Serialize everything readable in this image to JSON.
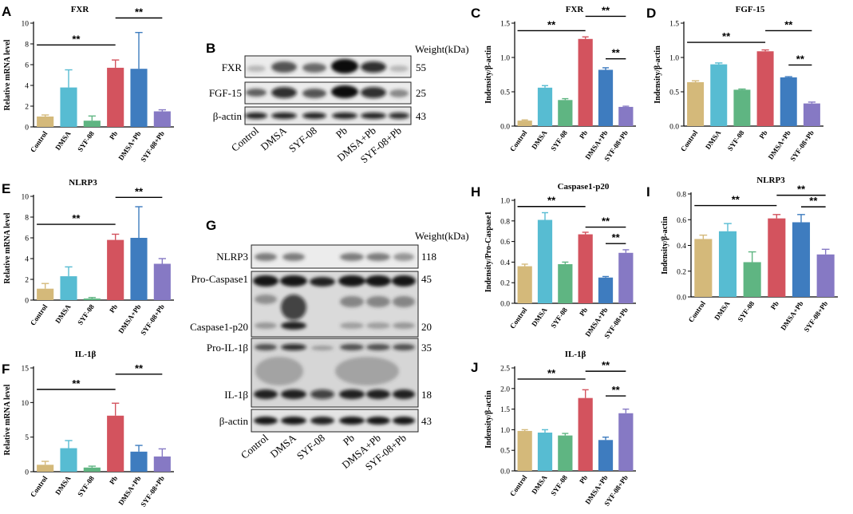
{
  "palette": [
    "#d4b97a",
    "#57bcd2",
    "#5fb582",
    "#d3535e",
    "#3e7cbf",
    "#8679c4"
  ],
  "chart_data": [
    {
      "id": "A",
      "type": "bar",
      "title": "FXR",
      "ylabel": "Relative mRNA level",
      "ylim": [
        0,
        10
      ],
      "yticks": [
        0,
        2,
        4,
        6,
        8,
        10
      ],
      "categories": [
        "Control",
        "DMSA",
        "SYF-08",
        "Pb",
        "DMSA+Pb",
        "SYF-08+Pb"
      ],
      "values": [
        1.0,
        3.8,
        0.6,
        5.7,
        5.6,
        1.5
      ],
      "errors": [
        0.15,
        1.7,
        0.45,
        0.75,
        3.5,
        0.15
      ],
      "sig": [
        {
          "from": 0,
          "to": 3,
          "y": 7.9,
          "label": "**"
        },
        {
          "from": 3,
          "to": 5,
          "y": 10.5,
          "label": "**"
        }
      ]
    },
    {
      "id": "E",
      "type": "bar",
      "title": "NLRP3",
      "ylabel": "Relative mRNA level",
      "ylim": [
        0,
        10
      ],
      "yticks": [
        0,
        2,
        4,
        6,
        8,
        10
      ],
      "categories": [
        "Control",
        "DMSA",
        "SYF-08",
        "Pb",
        "DMSA+Pb",
        "SYF-08+Pb"
      ],
      "values": [
        1.1,
        2.3,
        0.15,
        5.8,
        6.0,
        3.5
      ],
      "errors": [
        0.5,
        0.9,
        0.1,
        0.55,
        3.0,
        0.5
      ],
      "sig": [
        {
          "from": 0,
          "to": 3,
          "y": 7.3,
          "label": "**"
        },
        {
          "from": 3,
          "to": 5,
          "y": 9.9,
          "label": "**"
        }
      ]
    },
    {
      "id": "F",
      "type": "bar",
      "title": "IL-1β",
      "ylabel": "Relative mRNA level",
      "ylim": [
        0,
        15
      ],
      "yticks": [
        0,
        5,
        10,
        15
      ],
      "categories": [
        "Control",
        "DMSA",
        "SYF-08",
        "Pb",
        "DMSA+Pb",
        "SYF-08+Pb"
      ],
      "values": [
        1.0,
        3.4,
        0.6,
        8.1,
        2.9,
        2.2
      ],
      "errors": [
        0.5,
        1.1,
        0.2,
        1.8,
        0.9,
        1.1
      ],
      "sig": [
        {
          "from": 0,
          "to": 3,
          "y": 11.9,
          "label": "**"
        },
        {
          "from": 3,
          "to": 5,
          "y": 14.1,
          "label": "**"
        }
      ]
    },
    {
      "id": "C",
      "type": "bar",
      "title": "FXR",
      "ylabel": "Indensity/β-actin",
      "ylim": [
        0,
        1.5
      ],
      "yticks": [
        0.0,
        0.5,
        1.0,
        1.5
      ],
      "categories": [
        "Control",
        "DMSA",
        "SYF-08",
        "Pb",
        "DMSA+Pb",
        "SYF-08+Pb"
      ],
      "values": [
        0.08,
        0.56,
        0.38,
        1.27,
        0.82,
        0.28
      ],
      "errors": [
        0.01,
        0.03,
        0.02,
        0.03,
        0.03,
        0.01
      ],
      "sig": [
        {
          "from": 0,
          "to": 3,
          "y": 1.39,
          "label": "**"
        },
        {
          "from": 3,
          "to": 5,
          "y": 1.6,
          "label": "**"
        },
        {
          "from": 4,
          "to": 5,
          "y": 0.98,
          "label": "**"
        }
      ]
    },
    {
      "id": "D",
      "type": "bar",
      "title": "FGF-15",
      "ylabel": "Indensity/β-actin",
      "ylim": [
        0,
        1.5
      ],
      "yticks": [
        0.0,
        0.5,
        1.0,
        1.5
      ],
      "categories": [
        "Control",
        "DMSA",
        "SYF-08",
        "Pb",
        "DMSA+Pb",
        "SYF-08+Pb"
      ],
      "values": [
        0.64,
        0.9,
        0.53,
        1.09,
        0.71,
        0.33
      ],
      "errors": [
        0.02,
        0.02,
        0.01,
        0.02,
        0.01,
        0.02
      ],
      "sig": [
        {
          "from": 0,
          "to": 3,
          "y": 1.22,
          "label": "**"
        },
        {
          "from": 3,
          "to": 5,
          "y": 1.39,
          "label": "**"
        },
        {
          "from": 4,
          "to": 5,
          "y": 0.89,
          "label": "**"
        }
      ]
    },
    {
      "id": "H",
      "type": "bar",
      "title": "Caspase1-p20",
      "ylabel": "Indensity/Pro-Caspase1",
      "ylim": [
        0,
        1.0
      ],
      "yticks": [
        0.0,
        0.2,
        0.4,
        0.6,
        0.8,
        1.0
      ],
      "categories": [
        "Control",
        "DMSA",
        "SYF-08",
        "Pb",
        "DMSA+Pb",
        "SYF-08+Pb"
      ],
      "values": [
        0.36,
        0.81,
        0.38,
        0.67,
        0.25,
        0.49
      ],
      "errors": [
        0.02,
        0.07,
        0.02,
        0.02,
        0.01,
        0.03
      ],
      "sig": [
        {
          "from": 0,
          "to": 3,
          "y": 0.94,
          "label": "**"
        },
        {
          "from": 3,
          "to": 5,
          "y": 0.74,
          "label": "**"
        },
        {
          "from": 4,
          "to": 5,
          "y": 0.58,
          "label": "**"
        }
      ]
    },
    {
      "id": "I",
      "type": "bar",
      "title": "NLRP3",
      "ylabel": "Indensity/β-actin",
      "ylim": [
        0,
        0.8
      ],
      "yticks": [
        0.0,
        0.2,
        0.4,
        0.6,
        0.8
      ],
      "categories": [
        "Control",
        "DMSA",
        "SYF-08",
        "Pb",
        "DMSA+Pb",
        "SYF-08+Pb"
      ],
      "values": [
        0.45,
        0.51,
        0.27,
        0.61,
        0.58,
        0.33
      ],
      "errors": [
        0.03,
        0.06,
        0.08,
        0.03,
        0.06,
        0.04
      ],
      "sig": [
        {
          "from": 0,
          "to": 3,
          "y": 0.71,
          "label": "**"
        },
        {
          "from": 3,
          "to": 5,
          "y": 0.79,
          "label": "**"
        },
        {
          "from": 4,
          "to": 5,
          "y": 0.7,
          "label": "**"
        }
      ]
    },
    {
      "id": "J",
      "type": "bar",
      "title": "IL-1β",
      "ylabel": "Indensity/β-actin",
      "ylim": [
        0,
        2.5
      ],
      "yticks": [
        0.0,
        0.5,
        1.0,
        1.5,
        2.0,
        2.5
      ],
      "categories": [
        "Control",
        "DMSA",
        "SYF-08",
        "Pb",
        "DMSA+Pb",
        "SYF-08+Pb"
      ],
      "values": [
        0.97,
        0.93,
        0.86,
        1.77,
        0.75,
        1.4
      ],
      "errors": [
        0.03,
        0.07,
        0.05,
        0.2,
        0.07,
        0.1
      ],
      "sig": [
        {
          "from": 0,
          "to": 3,
          "y": 2.23,
          "label": "**"
        },
        {
          "from": 3,
          "to": 5,
          "y": 2.42,
          "label": "**"
        },
        {
          "from": 4,
          "to": 5,
          "y": 1.82,
          "label": "**"
        }
      ]
    }
  ],
  "blots": {
    "B": {
      "header": "Weight(kDa)",
      "rows": [
        {
          "label": "FXR",
          "weight": "55"
        },
        {
          "label": "FGF-15",
          "weight": "25"
        },
        {
          "label": "β-actin",
          "weight": "43"
        }
      ],
      "lanes": [
        "Control",
        "DMSA",
        "SYF-08",
        "Pb",
        "DMSA+Pb",
        "SYF-08+Pb"
      ]
    },
    "G": {
      "header": "Weight(kDa)",
      "rows": [
        {
          "label": "NLRP3",
          "weight": "118"
        },
        {
          "label": "Pro-Caspase1",
          "weight": "45"
        },
        {
          "label": "Caspase1-p20",
          "weight": "20"
        },
        {
          "label": "Pro-IL-1β",
          "weight": "35"
        },
        {
          "label": "IL-1β",
          "weight": "18"
        },
        {
          "label": "β-actin",
          "weight": "43"
        }
      ],
      "lanes": [
        "Control",
        "DMSA",
        "SYF-08",
        "Pb",
        "DMSA+Pb",
        "SYF-08+Pb"
      ]
    }
  }
}
